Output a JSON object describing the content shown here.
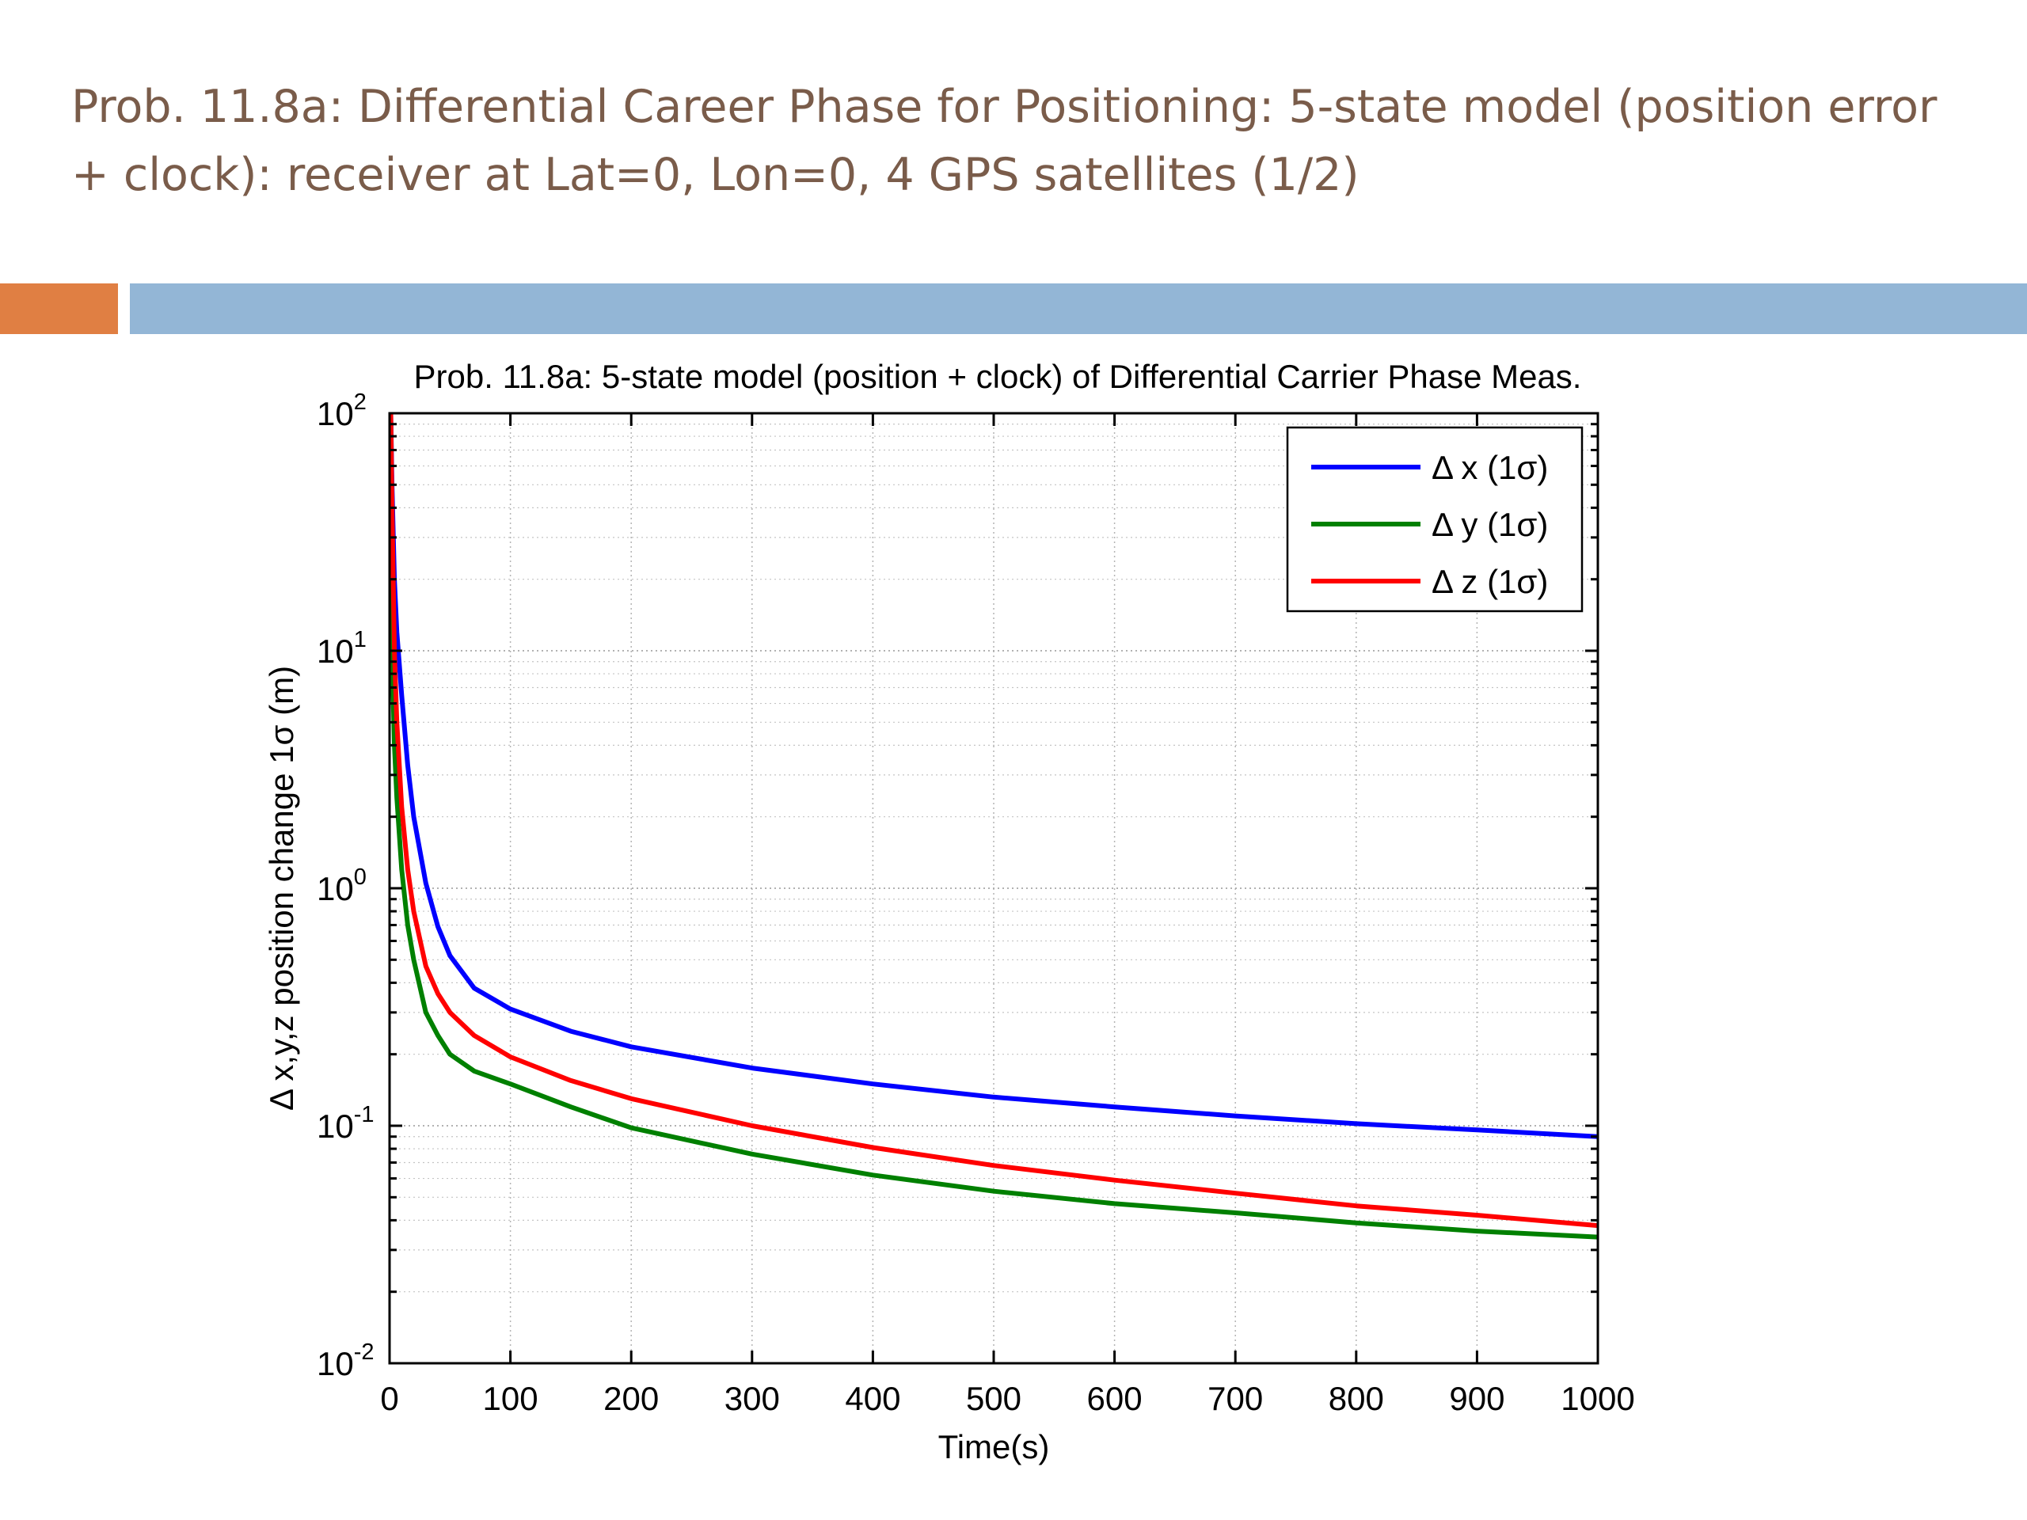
{
  "slide": {
    "title_line1": "Prob. 11.8a: Differential Career Phase for Positioning: 5-state model (position error",
    "title_line2": "+ clock): receiver at Lat=0, Lon=0, 4 GPS satellites (1/2)",
    "accent_color": "#e07f43",
    "bar_color": "#93b6d6",
    "title_color": "#7a5c4a"
  },
  "chart_data": {
    "type": "line",
    "title": "Prob. 11.8a: 5-state model (position + clock) of Differential Carrier Phase Meas.",
    "xlabel": "Time(s)",
    "ylabel": "Δ x,y,z position change 1σ (m)",
    "y_scale": "log",
    "xlim": [
      0,
      1000
    ],
    "ylim": [
      0.01,
      100
    ],
    "x_ticks": [
      "0",
      "100",
      "200",
      "300",
      "400",
      "500",
      "600",
      "700",
      "800",
      "900",
      "1000"
    ],
    "y_ticks": [
      {
        "base": "10",
        "exp": "-2"
      },
      {
        "base": "10",
        "exp": "-1"
      },
      {
        "base": "10",
        "exp": "0"
      },
      {
        "base": "10",
        "exp": "1"
      },
      {
        "base": "10",
        "exp": "2"
      }
    ],
    "grid": true,
    "legend_position": "top-right",
    "series": [
      {
        "name": "Δ x (1σ)",
        "color": "#0000ff",
        "x": [
          1,
          2,
          4,
          6,
          10,
          15,
          20,
          30,
          40,
          50,
          70,
          100,
          150,
          200,
          300,
          400,
          500,
          600,
          700,
          800,
          900,
          1000
        ],
        "y": [
          100,
          50,
          20,
          12,
          6.5,
          3.3,
          2.0,
          1.05,
          0.69,
          0.52,
          0.38,
          0.31,
          0.25,
          0.215,
          0.175,
          0.15,
          0.132,
          0.12,
          0.11,
          0.102,
          0.096,
          0.09
        ]
      },
      {
        "name": "Δ y (1σ)",
        "color": "#008000",
        "x": [
          1,
          2,
          4,
          6,
          10,
          15,
          20,
          30,
          40,
          50,
          70,
          100,
          150,
          200,
          300,
          400,
          500,
          600,
          700,
          800,
          900,
          1000
        ],
        "y": [
          20,
          10,
          4.0,
          2.4,
          1.2,
          0.7,
          0.5,
          0.3,
          0.24,
          0.2,
          0.17,
          0.15,
          0.12,
          0.098,
          0.076,
          0.062,
          0.053,
          0.047,
          0.043,
          0.039,
          0.036,
          0.034
        ]
      },
      {
        "name": "Δ z (1σ)",
        "color": "#ff0000",
        "x": [
          1,
          2,
          4,
          6,
          10,
          15,
          20,
          30,
          40,
          50,
          70,
          100,
          150,
          200,
          300,
          400,
          500,
          600,
          700,
          800,
          900,
          1000
        ],
        "y": [
          100,
          40,
          10,
          5.0,
          2.2,
          1.2,
          0.8,
          0.47,
          0.36,
          0.3,
          0.24,
          0.195,
          0.155,
          0.13,
          0.1,
          0.081,
          0.068,
          0.059,
          0.052,
          0.046,
          0.042,
          0.038
        ]
      }
    ]
  }
}
